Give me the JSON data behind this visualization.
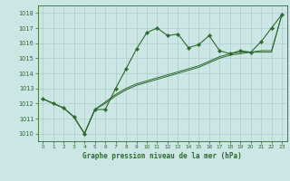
{
  "xlabel": "Graphe pression niveau de la mer (hPa)",
  "background_color": "#cce5e5",
  "line_color": "#2d6a2d",
  "ylim": [
    1009.5,
    1018.5
  ],
  "xlim": [
    -0.5,
    23.5
  ],
  "yticks": [
    1010,
    1011,
    1012,
    1013,
    1014,
    1015,
    1016,
    1017,
    1018
  ],
  "xticks": [
    0,
    1,
    2,
    3,
    4,
    5,
    6,
    7,
    8,
    9,
    10,
    11,
    12,
    13,
    14,
    15,
    16,
    17,
    18,
    19,
    20,
    21,
    22,
    23
  ],
  "line1_y": [
    1012.3,
    1012.0,
    1011.7,
    1011.1,
    1010.0,
    1011.6,
    1011.6,
    1013.0,
    1014.3,
    1015.6,
    1016.7,
    1017.0,
    1016.5,
    1016.6,
    1015.7,
    1015.9,
    1016.5,
    1015.5,
    1015.3,
    1015.5,
    1015.4,
    1016.1,
    1017.0,
    1017.9
  ],
  "line2_y": [
    1012.3,
    1012.0,
    1011.7,
    1011.1,
    1010.0,
    1011.6,
    1012.0,
    1012.5,
    1012.9,
    1013.2,
    1013.4,
    1013.6,
    1013.8,
    1014.0,
    1014.2,
    1014.4,
    1014.7,
    1015.0,
    1015.2,
    1015.3,
    1015.4,
    1015.4,
    1015.4,
    1017.9
  ],
  "line3_y": [
    1012.3,
    1012.0,
    1011.7,
    1011.1,
    1010.0,
    1011.6,
    1012.1,
    1012.6,
    1013.0,
    1013.3,
    1013.5,
    1013.7,
    1013.9,
    1014.1,
    1014.3,
    1014.5,
    1014.8,
    1015.1,
    1015.3,
    1015.4,
    1015.4,
    1015.5,
    1015.5,
    1017.9
  ],
  "figsize": [
    3.2,
    2.0
  ],
  "dpi": 100
}
